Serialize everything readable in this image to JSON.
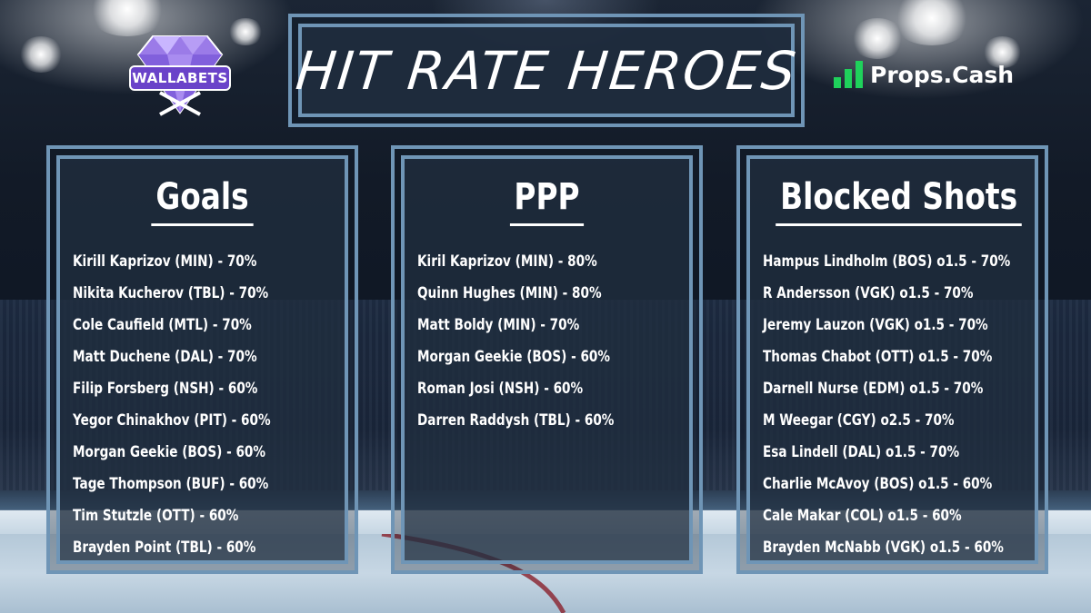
{
  "title": "HIT RATE HEROES",
  "logo_left": {
    "text": "WALLABETS",
    "icon": "diamond-hockey-sticks-icon",
    "color": "#6a43c9"
  },
  "logo_right": {
    "text": "Props.Cash",
    "icon": "green-bars-icon",
    "color": "#1fd15b"
  },
  "colors": {
    "frame": "#6f95b6",
    "panel": "#223042",
    "text": "#ffffff"
  },
  "panels": [
    {
      "title": "Goals",
      "items": [
        "Kirill Kaprizov (MIN) - 70%",
        "Nikita Kucherov (TBL) - 70%",
        "Cole Caufield (MTL) - 70%",
        "Matt Duchene (DAL) - 70%",
        "Filip Forsberg (NSH) - 60%",
        "Yegor Chinakhov (PIT) - 60%",
        "Morgan Geekie (BOS) - 60%",
        "Tage Thompson (BUF) - 60%",
        "Tim Stutzle (OTT) - 60%",
        "Brayden Point (TBL) - 60%"
      ]
    },
    {
      "title": "PPP",
      "items": [
        "Kiril Kaprizov (MIN) - 80%",
        "Quinn Hughes (MIN) - 80%",
        "Matt Boldy (MIN) - 70%",
        "Morgan Geekie (BOS) - 60%",
        "Roman Josi (NSH) - 60%",
        "Darren Raddysh (TBL) - 60%"
      ]
    },
    {
      "title": "Blocked Shots",
      "items": [
        "Hampus Lindholm (BOS) o1.5 - 70%",
        "R Andersson (VGK) o1.5 - 70%",
        "Jeremy Lauzon (VGK) o1.5 - 70%",
        "Thomas Chabot (OTT) o1.5 - 70%",
        "Darnell Nurse (EDM) o1.5 - 70%",
        "M Weegar (CGY) o2.5 - 70%",
        "Esa Lindell (DAL) o1.5 - 70%",
        "Charlie McAvoy (BOS) o1.5 - 60%",
        "Cale Makar (COL) o1.5 - 60%",
        "Brayden McNabb (VGK) o1.5 - 60%"
      ]
    }
  ]
}
